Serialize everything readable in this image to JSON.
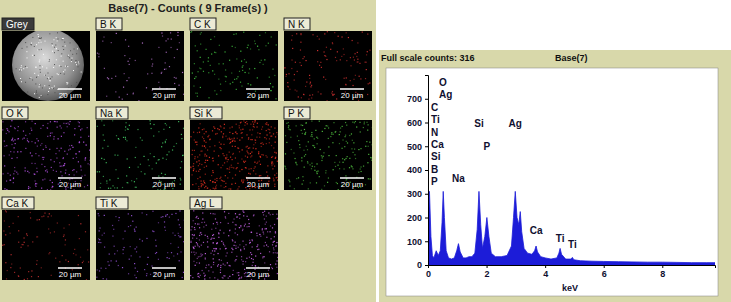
{
  "maps": {
    "title": "Base(7) - Counts ( 9 Frame(s) )",
    "tiles": [
      {
        "label": "Grey",
        "scale_bar": "20 µm",
        "color": "#cfcfcf"
      },
      {
        "label": "B K",
        "scale_bar": "20 µm",
        "color": "#b070c8"
      },
      {
        "label": "C K",
        "scale_bar": "20 µm",
        "color": "#40c040"
      },
      {
        "label": "N K",
        "scale_bar": "20 µm",
        "color": "#d03030"
      },
      {
        "label": "O K",
        "scale_bar": "20 µm",
        "color": "#b050e0"
      },
      {
        "label": "Na K",
        "scale_bar": "20 µm",
        "color": "#40c060"
      },
      {
        "label": "Si K",
        "scale_bar": "20 µm",
        "color": "#e03020"
      },
      {
        "label": "P K",
        "scale_bar": "20 µm",
        "color": "#50c040"
      },
      {
        "label": "Ca K",
        "scale_bar": "20 µm",
        "color": "#c03030"
      },
      {
        "label": "Ti K",
        "scale_bar": "20 µm",
        "color": "#9050d0"
      },
      {
        "label": "Ag L",
        "scale_bar": "20 µm",
        "color": "#c060e0"
      }
    ]
  },
  "chart_data": {
    "type": "area",
    "title": "Base(7)",
    "subtitle": "Full scale counts: 316",
    "xlabel": "keV",
    "color": "#1c1cd8",
    "x": [
      0,
      0.05,
      0.1,
      0.15,
      0.2,
      0.28,
      0.35,
      0.42,
      0.48,
      0.52,
      0.56,
      0.62,
      0.7,
      0.8,
      0.9,
      0.98,
      1.04,
      1.1,
      1.2,
      1.3,
      1.4,
      1.5,
      1.6,
      1.68,
      1.74,
      1.8,
      1.86,
      1.94,
      2.01,
      2.08,
      2.16,
      2.3,
      2.5,
      2.7,
      2.85,
      2.92,
      2.98,
      3.04,
      3.1,
      3.15,
      3.2,
      3.28,
      3.4,
      3.55,
      3.64,
      3.69,
      3.74,
      3.85,
      4.0,
      4.2,
      4.4,
      4.47,
      4.51,
      4.56,
      4.7,
      4.88,
      4.93,
      4.98,
      5.2,
      5.6,
      6.0,
      6.5,
      7.0,
      7.5,
      8.0,
      8.5,
      9.0,
      9.5,
      9.8
    ],
    "values": [
      300,
      310,
      120,
      40,
      30,
      60,
      40,
      60,
      180,
      310,
      200,
      60,
      30,
      25,
      30,
      60,
      90,
      55,
      30,
      30,
      35,
      35,
      50,
      150,
      310,
      170,
      70,
      120,
      200,
      120,
      50,
      35,
      35,
      40,
      80,
      200,
      310,
      200,
      170,
      225,
      140,
      70,
      50,
      45,
      60,
      80,
      55,
      35,
      30,
      25,
      30,
      50,
      70,
      45,
      25,
      25,
      32,
      22,
      18,
      16,
      15,
      14,
      13,
      12,
      12,
      11,
      10,
      10,
      10
    ],
    "xlim": [
      0,
      9.8
    ],
    "xticks": [
      0,
      2,
      4,
      6,
      8
    ],
    "ylim": [
      0,
      800
    ],
    "yticks": [
      0,
      100,
      200,
      300,
      400,
      500,
      600,
      700
    ],
    "element_list": [
      "O",
      "Ag",
      "C",
      "Ti",
      "N",
      "Ca",
      "Si",
      "B",
      "P"
    ],
    "annotations": [
      {
        "text": "Si",
        "x": 1.74,
        "y": 580
      },
      {
        "text": "P",
        "x": 2.01,
        "y": 485
      },
      {
        "text": "Ag",
        "x": 2.98,
        "y": 580
      },
      {
        "text": "Na",
        "x": 1.04,
        "y": 350
      },
      {
        "text": "Ca",
        "x": 3.69,
        "y": 130
      },
      {
        "text": "Ti",
        "x": 4.51,
        "y": 97
      },
      {
        "text": "Ti",
        "x": 4.93,
        "y": 72
      }
    ]
  }
}
